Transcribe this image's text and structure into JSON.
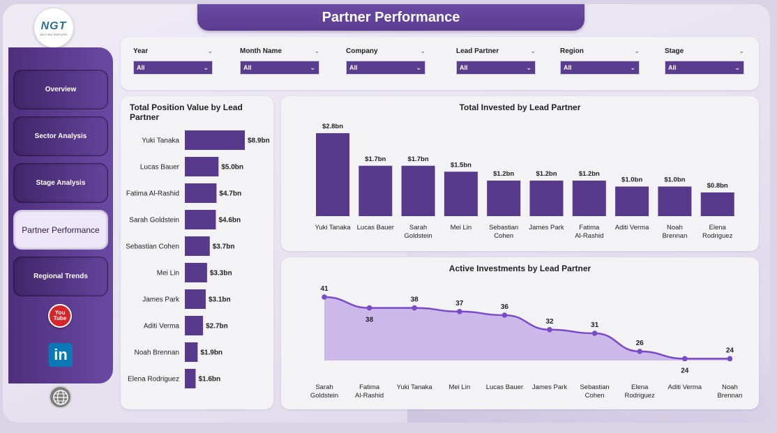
{
  "header": {
    "title": "Partner Performance"
  },
  "logo": {
    "text": "NGT",
    "subtext": "NEXT GEN TEMPLATES"
  },
  "sidebar": {
    "items": [
      {
        "label": "Overview",
        "active": false
      },
      {
        "label": "Sector Analysis",
        "active": false
      },
      {
        "label": "Stage Analysis",
        "active": false
      },
      {
        "label": "Partner Performance",
        "active": true
      },
      {
        "label": "Regional Trends",
        "active": false
      }
    ],
    "youtube": {
      "line1": "You",
      "line2": "Tube"
    },
    "linkedin": "in",
    "icons": [
      "youtube-icon",
      "linkedin-icon",
      "globe-icon"
    ]
  },
  "filters": [
    {
      "label": "Year",
      "value": "All"
    },
    {
      "label": "Month Name",
      "value": "All"
    },
    {
      "label": "Company",
      "value": "All"
    },
    {
      "label": "Lead Partner",
      "value": "All"
    },
    {
      "label": "Region",
      "value": "All"
    },
    {
      "label": "Stage",
      "value": "All"
    }
  ],
  "colors": {
    "accent": "#5a3d8f",
    "bar": "#573a8c",
    "area": "#c4aee8",
    "line": "#7a4bc9"
  },
  "chart_data": [
    {
      "type": "bar",
      "orientation": "horizontal",
      "title": "Total Position Value by Lead Partner",
      "categories": [
        "Yuki Tanaka",
        "Lucas Bauer",
        "Fatima Al-Rashid",
        "Sarah Goldstein",
        "Sebastian Cohen",
        "Mei Lin",
        "James Park",
        "Aditi Verma",
        "Noah Brennan",
        "Elena Rodriguez"
      ],
      "values": [
        8.9,
        5.0,
        4.7,
        4.6,
        3.7,
        3.3,
        3.1,
        2.7,
        1.9,
        1.6
      ],
      "labels": [
        "$8.9bn",
        "$5.0bn",
        "$4.7bn",
        "$4.6bn",
        "$3.7bn",
        "$3.3bn",
        "$3.1bn",
        "$2.7bn",
        "$1.9bn",
        "$1.6bn"
      ]
    },
    {
      "type": "bar",
      "orientation": "vertical",
      "title": "Total Invested by Lead Partner",
      "categories": [
        "Yuki Tanaka",
        "Lucas Bauer",
        "Sarah Goldstein",
        "Mei Lin",
        "Sebastian Cohen",
        "James Park",
        "Fatima Al-Rashid",
        "Aditi Verma",
        "Noah Brennan",
        "Elena Rodriguez"
      ],
      "category_lines": [
        [
          "Yuki Tanaka"
        ],
        [
          "Lucas Bauer"
        ],
        [
          "Sarah",
          "Goldstein"
        ],
        [
          "Mei Lin"
        ],
        [
          "Sebastian",
          "Cohen"
        ],
        [
          "James Park"
        ],
        [
          "Fatima",
          "Al-Rashid"
        ],
        [
          "Aditi Verma"
        ],
        [
          "Noah",
          "Brennan"
        ],
        [
          "Elena",
          "Rodriguez"
        ]
      ],
      "values": [
        2.8,
        1.7,
        1.7,
        1.5,
        1.2,
        1.2,
        1.2,
        1.0,
        1.0,
        0.8
      ],
      "labels": [
        "$2.8bn",
        "$1.7bn",
        "$1.7bn",
        "$1.5bn",
        "$1.2bn",
        "$1.2bn",
        "$1.2bn",
        "$1.0bn",
        "$1.0bn",
        "$0.8bn"
      ]
    },
    {
      "type": "area",
      "title": "Active Investments by Lead Partner",
      "categories": [
        "Sarah Goldstein",
        "Fatima Al-Rashid",
        "Yuki Tanaka",
        "Mei Lin",
        "Lucas Bauer",
        "James Park",
        "Sebastian Cohen",
        "Elena Rodriguez",
        "Aditi Verma",
        "Noah Brennan"
      ],
      "category_lines": [
        [
          "Sarah",
          "Goldstein"
        ],
        [
          "Fatima",
          "Al-Rashid"
        ],
        [
          "Yuki Tanaka"
        ],
        [
          "Mei Lin"
        ],
        [
          "Lucas Bauer"
        ],
        [
          "James Park"
        ],
        [
          "Sebastian",
          "Cohen"
        ],
        [
          "Elena",
          "Rodriguez"
        ],
        [
          "Aditi Verma"
        ],
        [
          "Noah",
          "Brennan"
        ]
      ],
      "values": [
        41,
        38,
        38,
        37,
        36,
        32,
        31,
        26,
        24,
        24
      ],
      "label_pos": [
        "above",
        "below",
        "above",
        "above",
        "above",
        "above",
        "above",
        "above",
        "below",
        "above"
      ]
    }
  ]
}
